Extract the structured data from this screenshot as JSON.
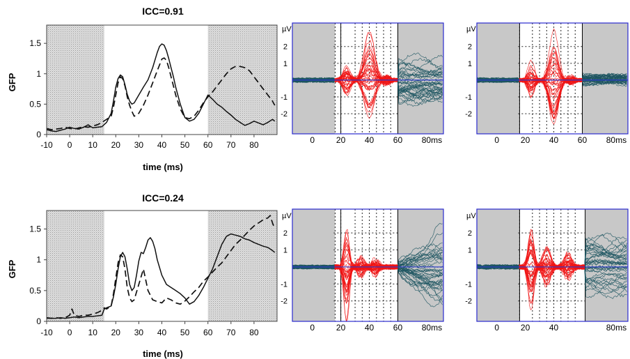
{
  "chart_data": [
    {
      "type": "line",
      "panel": "gfp-top",
      "title": "ICC=0.91",
      "xlabel": "time (ms)",
      "ylabel": "GFP",
      "xlim": [
        -10,
        90
      ],
      "ylim": [
        0,
        1.8
      ],
      "xticks": [
        "-10",
        "0",
        "10",
        "20",
        "30",
        "40",
        "50",
        "60",
        "70",
        "80"
      ],
      "yticks": [
        "0",
        "0.5",
        "1",
        "1.5"
      ],
      "shaded_x_ranges": [
        [
          -10,
          15
        ],
        [
          60,
          90
        ]
      ],
      "series": [
        {
          "style": "solid",
          "x": [
            -10,
            -8,
            -6,
            -4,
            -2,
            0,
            2,
            4,
            6,
            8,
            10,
            12,
            14,
            16,
            18,
            19,
            20,
            21,
            22,
            23,
            24,
            25,
            26,
            27,
            28,
            30,
            32,
            34,
            36,
            38,
            39,
            40,
            41,
            42,
            43,
            44,
            45,
            46,
            48,
            50,
            52,
            54,
            56,
            58,
            60,
            62,
            64,
            66,
            68,
            70,
            72,
            74,
            76,
            78,
            80,
            82,
            84,
            86,
            88,
            89
          ],
          "y": [
            0.08,
            0.06,
            0.05,
            0.07,
            0.09,
            0.12,
            0.1,
            0.09,
            0.12,
            0.16,
            0.11,
            0.12,
            0.13,
            0.2,
            0.35,
            0.55,
            0.78,
            0.92,
            0.98,
            0.95,
            0.82,
            0.66,
            0.55,
            0.5,
            0.52,
            0.65,
            0.78,
            0.9,
            1.1,
            1.35,
            1.45,
            1.49,
            1.47,
            1.38,
            1.25,
            1.1,
            0.95,
            0.78,
            0.5,
            0.28,
            0.22,
            0.25,
            0.35,
            0.5,
            0.65,
            0.58,
            0.5,
            0.45,
            0.38,
            0.32,
            0.25,
            0.2,
            0.15,
            0.18,
            0.22,
            0.19,
            0.16,
            0.2,
            0.25,
            0.22
          ]
        },
        {
          "style": "dashed",
          "x": [
            -10,
            -8,
            -6,
            -4,
            -2,
            0,
            2,
            4,
            6,
            8,
            10,
            12,
            14,
            16,
            18,
            19,
            20,
            21,
            22,
            23,
            24,
            25,
            26,
            27,
            28,
            30,
            32,
            34,
            36,
            38,
            40,
            41,
            42,
            43,
            44,
            45,
            46,
            48,
            50,
            52,
            54,
            56,
            58,
            60,
            62,
            64,
            66,
            68,
            70,
            72,
            74,
            76,
            78,
            80,
            82,
            84,
            86,
            88,
            89
          ],
          "y": [
            0.1,
            0.08,
            0.09,
            0.1,
            0.12,
            0.1,
            0.09,
            0.11,
            0.13,
            0.12,
            0.14,
            0.16,
            0.2,
            0.25,
            0.3,
            0.45,
            0.65,
            0.85,
            0.95,
            0.92,
            0.8,
            0.62,
            0.48,
            0.38,
            0.3,
            0.35,
            0.48,
            0.65,
            0.85,
            1.05,
            1.24,
            1.26,
            1.22,
            1.1,
            0.95,
            0.8,
            0.65,
            0.42,
            0.28,
            0.26,
            0.3,
            0.4,
            0.52,
            0.62,
            0.7,
            0.8,
            0.9,
            1.0,
            1.08,
            1.12,
            1.12,
            1.1,
            1.05,
            0.95,
            0.85,
            0.75,
            0.65,
            0.55,
            0.48
          ]
        }
      ]
    },
    {
      "type": "line",
      "panel": "gfp-bottom",
      "title": "ICC=0.24",
      "xlabel": "time (ms)",
      "ylabel": "GFP",
      "xlim": [
        -10,
        90
      ],
      "ylim": [
        0,
        1.8
      ],
      "xticks": [
        "-10",
        "0",
        "10",
        "20",
        "30",
        "40",
        "50",
        "60",
        "70",
        "80"
      ],
      "yticks": [
        "0",
        "0.5",
        "1",
        "1.5"
      ],
      "shaded_x_ranges": [
        [
          -10,
          15
        ],
        [
          60,
          90
        ]
      ],
      "series": [
        {
          "style": "solid",
          "x": [
            -10,
            -8,
            -6,
            -4,
            -2,
            0,
            2,
            4,
            6,
            8,
            10,
            12,
            14,
            15,
            16,
            18,
            19,
            20,
            21,
            22,
            23,
            24,
            25,
            26,
            27,
            28,
            29,
            30,
            31,
            32,
            33,
            34,
            35,
            36,
            37,
            38,
            40,
            42,
            44,
            46,
            48,
            50,
            52,
            54,
            56,
            58,
            60,
            62,
            64,
            66,
            68,
            70,
            72,
            74,
            76,
            78,
            80,
            82,
            84,
            86,
            88,
            89
          ],
          "y": [
            0.05,
            0.05,
            0.05,
            0.06,
            0.05,
            0.06,
            0.07,
            0.06,
            0.07,
            0.08,
            0.08,
            0.09,
            0.1,
            0.2,
            0.22,
            0.25,
            0.4,
            0.6,
            0.85,
            1.05,
            1.12,
            1.05,
            0.85,
            0.6,
            0.5,
            0.55,
            0.75,
            0.98,
            1.12,
            1.1,
            1.2,
            1.32,
            1.36,
            1.3,
            1.18,
            1.0,
            0.75,
            0.6,
            0.55,
            0.5,
            0.45,
            0.38,
            0.28,
            0.32,
            0.42,
            0.55,
            0.7,
            0.85,
            1.05,
            1.25,
            1.38,
            1.42,
            1.4,
            1.38,
            1.34,
            1.32,
            1.28,
            1.25,
            1.22,
            1.2,
            1.15,
            1.12
          ]
        },
        {
          "style": "dashed",
          "x": [
            -10,
            -8,
            -6,
            -4,
            -2,
            0,
            1,
            2,
            4,
            6,
            8,
            10,
            12,
            14,
            15,
            16,
            18,
            19,
            20,
            21,
            22,
            23,
            24,
            25,
            26,
            27,
            28,
            30,
            32,
            34,
            36,
            38,
            40,
            42,
            44,
            46,
            48,
            50,
            52,
            54,
            56,
            58,
            60,
            62,
            64,
            66,
            68,
            70,
            72,
            74,
            76,
            78,
            80,
            82,
            84,
            86,
            87,
            88,
            89
          ],
          "y": [
            0.06,
            0.05,
            0.06,
            0.05,
            0.06,
            0.1,
            0.2,
            0.1,
            0.08,
            0.1,
            0.1,
            0.12,
            0.14,
            0.18,
            0.22,
            0.2,
            0.25,
            0.45,
            0.7,
            0.95,
            1.08,
            1.05,
            0.85,
            0.55,
            0.38,
            0.32,
            0.35,
            0.6,
            0.85,
            0.5,
            0.35,
            0.32,
            0.3,
            0.38,
            0.35,
            0.3,
            0.28,
            0.33,
            0.4,
            0.48,
            0.55,
            0.65,
            0.72,
            0.8,
            0.88,
            0.95,
            1.05,
            1.15,
            1.25,
            1.32,
            1.4,
            1.48,
            1.55,
            1.6,
            1.65,
            1.68,
            1.72,
            1.6,
            1.5
          ]
        }
      ]
    },
    {
      "type": "line",
      "panel": "butterfly-top-left",
      "unit_label": "µV",
      "xlim": [
        -14,
        92
      ],
      "ylim": [
        -3.2,
        3.4
      ],
      "xticks": [
        "0",
        "20",
        "40",
        "60",
        "80ms"
      ],
      "xtick_values": [
        0,
        20,
        40,
        60,
        80
      ],
      "yticks": [
        "2",
        "1",
        "-1",
        "-2"
      ],
      "ytick_values": [
        2,
        1,
        -1,
        -2
      ],
      "dashed_x": [
        16,
        20,
        30,
        35,
        40,
        45,
        50,
        55
      ],
      "dashed_y": [
        2,
        1,
        -1,
        -2
      ],
      "solid_x": [
        20,
        60
      ],
      "shaded_x_ranges": [
        [
          -14,
          16
        ],
        [
          60,
          92
        ]
      ],
      "red_x_range": [
        15,
        60
      ],
      "baseline_color": "#2d3ac9",
      "trace_colors": {
        "inside": "#f01414",
        "outside": "#1c5560",
        "frame": "#2a2acf"
      },
      "noise_level": 0.12,
      "pre_noise_level": 0.08,
      "peaks": [
        {
          "t": 24,
          "w": 2.6,
          "a": 0.9
        },
        {
          "t": 40,
          "w": 3.6,
          "a": 2.7
        },
        {
          "t": 52,
          "w": 2.5,
          "a": 0.3
        }
      ],
      "post_spread": 1.6
    },
    {
      "type": "line",
      "panel": "butterfly-top-right",
      "unit_label": "µV",
      "xlim": [
        -14,
        92
      ],
      "ylim": [
        -3.2,
        3.4
      ],
      "xticks": [
        "0",
        "20",
        "40",
        "60",
        "80ms"
      ],
      "xtick_values": [
        0,
        20,
        40,
        60,
        80
      ],
      "yticks": [
        "2",
        "1",
        "-1",
        "-2"
      ],
      "ytick_values": [
        2,
        1,
        -1,
        -2
      ],
      "dashed_x": [
        16,
        25,
        30,
        35,
        40,
        45,
        50,
        55
      ],
      "dashed_y": [
        2,
        1,
        -1,
        -2
      ],
      "solid_x": [
        16,
        60
      ],
      "shaded_x_ranges": [
        [
          -14,
          16
        ],
        [
          60,
          92
        ]
      ],
      "red_x_range": [
        15,
        60
      ],
      "baseline_color": "#2d3ac9",
      "trace_colors": {
        "inside": "#f01414",
        "outside": "#1c5560",
        "frame": "#2a2acf"
      },
      "noise_level": 0.12,
      "pre_noise_level": 0.08,
      "peaks": [
        {
          "t": 24,
          "w": 2.4,
          "a": 1.0
        },
        {
          "t": 40,
          "w": 3.2,
          "a": 3.1
        },
        {
          "t": 52,
          "w": 2.5,
          "a": 0.25
        }
      ],
      "post_spread": 0.35
    },
    {
      "type": "line",
      "panel": "butterfly-bottom-left",
      "unit_label": "µV",
      "xlim": [
        -14,
        92
      ],
      "ylim": [
        -3.2,
        3.4
      ],
      "xticks": [
        "0",
        "20",
        "40",
        "60",
        "80ms"
      ],
      "xtick_values": [
        0,
        20,
        40,
        60,
        80
      ],
      "yticks": [
        "2",
        "1",
        "-1",
        "-2"
      ],
      "ytick_values": [
        2,
        1,
        -1,
        -2
      ],
      "dashed_x": [
        16,
        20,
        30,
        35,
        40,
        45,
        50,
        55
      ],
      "dashed_y": [
        2,
        1,
        -1,
        -2
      ],
      "solid_x": [
        20,
        60
      ],
      "shaded_x_ranges": [
        [
          -14,
          16
        ],
        [
          60,
          92
        ]
      ],
      "red_x_range": [
        15,
        60
      ],
      "baseline_color": "#2d3ac9",
      "trace_colors": {
        "inside": "#f01414",
        "outside": "#1c5560",
        "frame": "#2a2acf"
      },
      "noise_level": 0.15,
      "pre_noise_level": 0.05,
      "peaks": [
        {
          "t": 24,
          "w": 1.8,
          "a": 2.9
        },
        {
          "t": 34,
          "w": 2.5,
          "a": 0.7
        },
        {
          "t": 44,
          "w": 2.5,
          "a": 0.5
        }
      ],
      "post_ramp": 2.8
    },
    {
      "type": "line",
      "panel": "butterfly-bottom-right",
      "unit_label": "µV",
      "xlim": [
        -14,
        92
      ],
      "ylim": [
        -3.2,
        3.4
      ],
      "xticks": [
        "0",
        "20",
        "40",
        "80ms"
      ],
      "xtick_values": [
        0,
        20,
        40,
        80
      ],
      "yticks": [
        "2",
        "1",
        "-1",
        "-2"
      ],
      "ytick_values": [
        2,
        1,
        -1,
        -2
      ],
      "dashed_x": [
        16,
        25,
        30,
        35,
        40,
        45,
        50,
        55
      ],
      "dashed_y": [
        2,
        1,
        -1,
        -2
      ],
      "solid_x": [
        16,
        62
      ],
      "shaded_x_ranges": [
        [
          -14,
          16
        ],
        [
          62,
          92
        ]
      ],
      "red_x_range": [
        15,
        62
      ],
      "baseline_color": "#2d3ac9",
      "trace_colors": {
        "inside": "#f01414",
        "outside": "#1c5560",
        "frame": "#2a2acf"
      },
      "noise_level": 0.15,
      "pre_noise_level": 0.07,
      "peaks": [
        {
          "t": 24,
          "w": 2.0,
          "a": 2.6
        },
        {
          "t": 35,
          "w": 2.6,
          "a": 1.3
        },
        {
          "t": 50,
          "w": 2.6,
          "a": 0.8
        }
      ],
      "post_spread": 2.0
    }
  ]
}
